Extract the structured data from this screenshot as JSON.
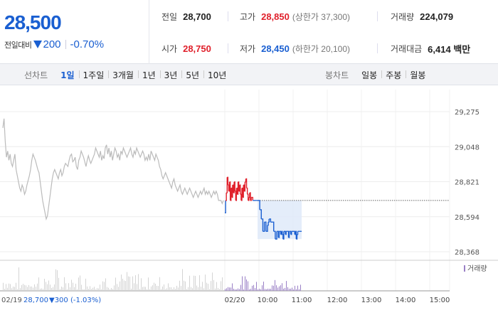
{
  "quote": {
    "price": "28,500",
    "change_label": "전일대비",
    "change_amount": "200",
    "change_pct": "-0.70%"
  },
  "stats": {
    "prev_close": {
      "label": "전일",
      "value": "28,700"
    },
    "high": {
      "label": "고가",
      "value": "28,850",
      "sub": "(상한가 37,300)"
    },
    "volume": {
      "label": "거래량",
      "value": "224,079"
    },
    "open": {
      "label": "시가",
      "value": "28,750"
    },
    "low": {
      "label": "저가",
      "value": "28,450",
      "sub": "(하한가 20,100)"
    },
    "amount": {
      "label": "거래대금",
      "value": "6,414 백만"
    }
  },
  "tabs": {
    "line_label": "선차트",
    "line_items": [
      "1일",
      "1주일",
      "3개월",
      "1년",
      "3년",
      "5년",
      "10년"
    ],
    "line_active": 0,
    "candle_label": "봉차트",
    "candle_items": [
      "일봉",
      "주봉",
      "월봉"
    ]
  },
  "colors": {
    "up": "#e0202b",
    "down": "#1a5fd1",
    "prev_day": "#bbbbbb",
    "accent": "#1a5fd1"
  },
  "chart_data": {
    "type": "line",
    "y_ticks": [
      "29,275",
      "29,048",
      "28,821",
      "28,594",
      "28,368"
    ],
    "ylim": [
      28368,
      29275
    ],
    "prev_close": 28700,
    "x_ticks": [
      "02/20",
      "10:00",
      "11:00",
      "12:00",
      "13:00",
      "14:00",
      "15:00"
    ],
    "volume_label": "거래량",
    "prev_day_caption": "02/19",
    "prev_day_close": "28,700",
    "prev_day_change": "▼300 (-1.03%)",
    "series": [
      {
        "values": [
          29170,
          29230,
          29080,
          28980,
          29020,
          28960,
          29000,
          28940,
          28920,
          28960,
          29000,
          28900,
          28860,
          28820,
          28780,
          28760,
          28800,
          28780,
          28740,
          28760,
          28800,
          28830,
          28860,
          28900,
          28960,
          29000,
          28980,
          28960,
          28930,
          28900,
          28880,
          28820,
          28760,
          28700,
          28660,
          28620,
          28580,
          28600,
          28660,
          28720,
          28780,
          28840,
          28880,
          28900,
          28880,
          28860,
          28840,
          28880,
          28900,
          28860,
          28880,
          28920,
          28940,
          28930,
          28920,
          28960,
          28990,
          29000,
          28950,
          28960,
          28980,
          28920,
          28900,
          28960,
          28980,
          29020,
          29000,
          28980,
          28950,
          28920,
          28960,
          28990,
          28960,
          28940,
          28960,
          28980,
          29000,
          29040,
          29020,
          29000,
          28980,
          29020,
          28960,
          28990,
          28970,
          29040,
          29060,
          29000,
          29040,
          28980,
          29020,
          28960,
          29000,
          29040,
          29020,
          28980,
          29000,
          28960,
          29020,
          29000,
          29040,
          29020,
          29000,
          28980,
          29000,
          29020,
          29040,
          29000,
          28980,
          29020,
          29000,
          29040,
          29020,
          29000,
          28980,
          29000,
          29020,
          29000,
          28960,
          28980,
          28960,
          29000,
          28960,
          29020,
          29000,
          28980,
          28960,
          29000,
          28980,
          28960,
          28920,
          28900,
          28860,
          28840,
          28860,
          28880,
          28860,
          28840,
          28820,
          28800,
          28780,
          28820,
          28840,
          28800,
          28780,
          28760,
          28780,
          28800,
          28760,
          28740,
          28760,
          28780,
          28760,
          28740,
          28760,
          28780,
          28760,
          28740,
          28720,
          28740,
          28760,
          28740,
          28720,
          28740,
          28760,
          28740,
          28760,
          28780,
          28740,
          28760,
          28740,
          28760,
          28740,
          28720,
          28740,
          28760,
          28740,
          28760,
          28740,
          28700,
          28700,
          28700,
          28680,
          28700
        ]
      },
      {
        "values": [
          28620,
          28700,
          28750,
          28850,
          28800,
          28760,
          28820,
          28700,
          28780,
          28720,
          28800,
          28750,
          28820,
          28760,
          28700,
          28780,
          28740,
          28820,
          28760,
          28800,
          28740,
          28700,
          28780,
          28720,
          28800,
          28760,
          28820,
          28840,
          28780,
          28740,
          28700,
          28720,
          28750,
          28700,
          28720,
          28720,
          28700,
          28700,
          28700,
          28700,
          28700,
          28700,
          28700,
          28700,
          28700,
          28640,
          28640,
          28580,
          28580,
          28500,
          28500,
          28560,
          28560,
          28500,
          28500,
          28540,
          28560,
          28580,
          28580,
          28560,
          28560,
          28560,
          28560,
          28500,
          28500,
          28450,
          28450,
          28500,
          28500,
          28460,
          28500,
          28500,
          28480,
          28500,
          28480,
          28450,
          28500,
          28500,
          28480,
          28500,
          28500,
          28500,
          28460,
          28500,
          28500,
          28480,
          28500,
          28500,
          28500,
          28500,
          28480,
          28500,
          28450,
          28480,
          28500,
          28500,
          28500,
          28500,
          28500,
          28500
        ]
      }
    ]
  }
}
